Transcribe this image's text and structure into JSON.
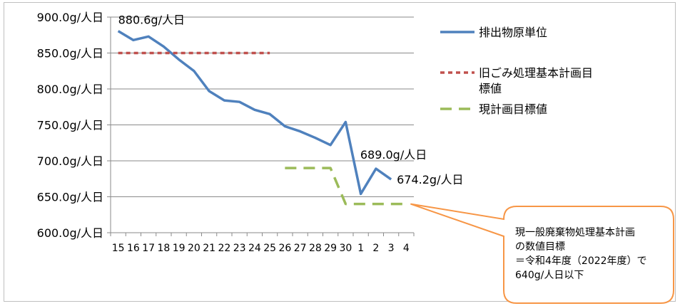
{
  "chart_data": {
    "type": "line",
    "x": [
      "15",
      "16",
      "17",
      "18",
      "19",
      "20",
      "21",
      "22",
      "23",
      "24",
      "25",
      "26",
      "27",
      "28",
      "29",
      "30",
      "1",
      "2",
      "3",
      "4"
    ],
    "ylim": [
      600,
      900
    ],
    "yticks": [
      "600.0g/人日",
      "650.0g/人日",
      "700.0g/人日",
      "750.0g/人日",
      "800.0g/人日",
      "850.0g/人日",
      "900.0g/人日"
    ],
    "grid": true,
    "legend_position": "right",
    "series": [
      {
        "name": "排出物原単位",
        "color": "#4f81bd",
        "style": "solid",
        "values": [
          880.6,
          868,
          873,
          859,
          841,
          825,
          797,
          784,
          782,
          771,
          765,
          748,
          741,
          732,
          722,
          754,
          654,
          689.0,
          674.2,
          null
        ]
      },
      {
        "name": "旧ごみ処理基本計画目標値",
        "color": "#c0504d",
        "style": "dotted",
        "values": [
          850,
          850,
          850,
          850,
          850,
          850,
          850,
          850,
          850,
          850,
          850,
          null,
          null,
          null,
          null,
          null,
          null,
          null,
          null,
          null
        ]
      },
      {
        "name": "現計画目標値",
        "color": "#9bbb59",
        "style": "dashed",
        "values": [
          null,
          null,
          null,
          null,
          null,
          null,
          null,
          null,
          null,
          null,
          null,
          690,
          690,
          690,
          690,
          640,
          640,
          640,
          640,
          640
        ]
      }
    ],
    "data_labels": [
      {
        "text": "880.6g/人日",
        "series": 0,
        "index": 0
      },
      {
        "text": "689.0g/人日",
        "series": 0,
        "index": 17
      },
      {
        "text": "674.2g/人日",
        "series": 0,
        "index": 18
      }
    ],
    "annotation": {
      "text": "現一般廃棄物処理基本計画\nの数値目標\n＝令和4年度（2022年度）で\n640g/人日以下"
    }
  },
  "colors": {
    "grid": "#8a8a8a",
    "axis": "#8a8a8a",
    "callout_border": "#f79646",
    "frame": "#bfbfbf"
  }
}
